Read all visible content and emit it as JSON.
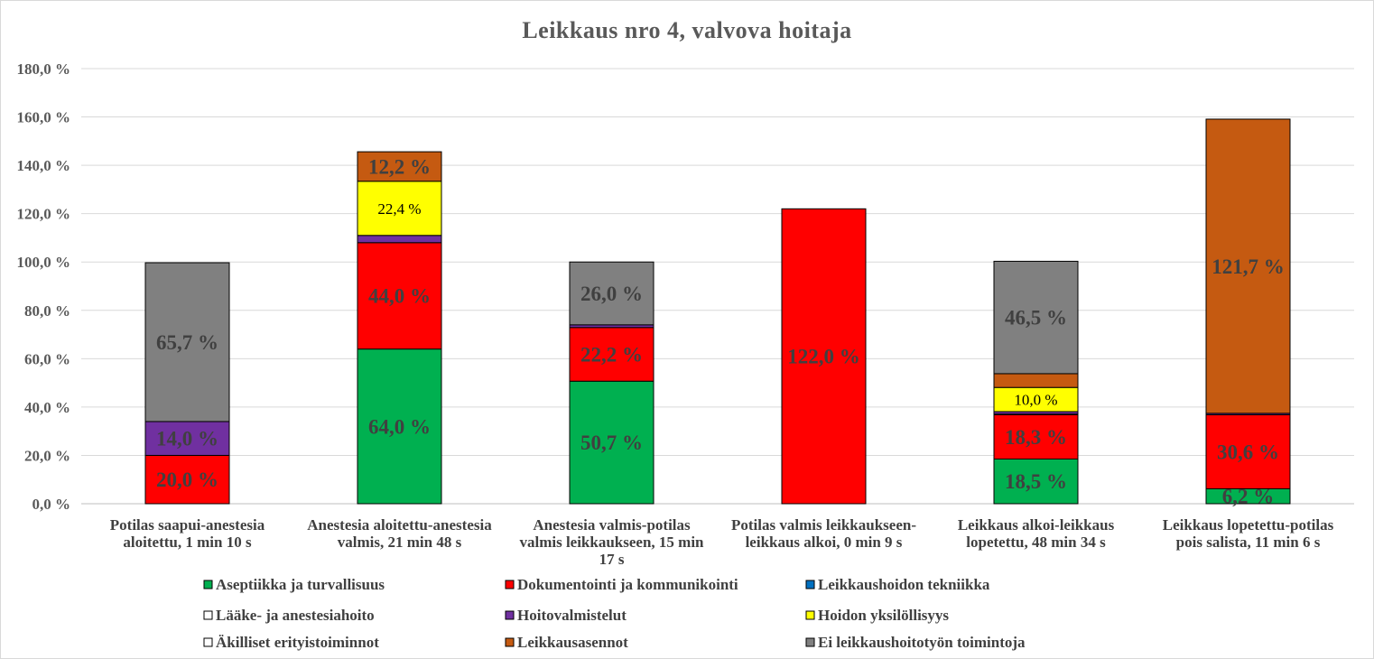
{
  "chart_data": {
    "type": "bar",
    "stacked": true,
    "title": "Leikkaus nro 4, valvova hoitaja",
    "xlabel": "",
    "ylabel": "",
    "ylim": [
      0,
      180
    ],
    "y_tick_step": 20,
    "y_tick_labels": [
      "0,0 %",
      "20,0 %",
      "40,0 %",
      "60,0 %",
      "80,0 %",
      "100,0 %",
      "120,0 %",
      "140,0 %",
      "160,0 %",
      "180,0 %"
    ],
    "grid": true,
    "legend_position": "bottom",
    "categories": [
      [
        "Potilas saapui-anestesia",
        "aloitettu, 1 min 10 s"
      ],
      [
        "Anestesia aloitettu-anestesia",
        "valmis, 21 min 48 s"
      ],
      [
        "Anestesia valmis-potilas",
        "valmis leikkaukseen, 15 min",
        "17 s"
      ],
      [
        "Potilas valmis leikkaukseen-",
        "leikkaus alkoi, 0 min 9 s"
      ],
      [
        "Leikkaus alkoi-leikkaus",
        "lopetettu, 48 min 34 s"
      ],
      [
        "Leikkaus lopetettu-potilas",
        "pois salista, 11 min 6 s"
      ]
    ],
    "series": [
      {
        "name": "Aseptiikka ja turvallisuus",
        "color": "#00b050",
        "values": [
          0,
          64.0,
          50.7,
          0,
          18.5,
          6.2
        ],
        "labels": [
          null,
          "64,0 %",
          "50,7 %",
          null,
          "18,5 %",
          "6,2 %"
        ]
      },
      {
        "name": "Dokumentointi ja kommunikointi",
        "color": "#ff0000",
        "values": [
          20.0,
          44.0,
          22.2,
          122.0,
          18.3,
          30.6
        ],
        "labels": [
          "20,0 %",
          "44,0 %",
          "22,2 %",
          "122,0 %",
          "18,3 %",
          "30,6 %"
        ]
      },
      {
        "name": "Leikkaushoidon tekniikka",
        "color": "#0070c0",
        "values": [
          0,
          0,
          0,
          0,
          0.3,
          0
        ],
        "labels": [
          null,
          null,
          null,
          null,
          null,
          null
        ]
      },
      {
        "name": "Lääke- ja anestesiahoito",
        "color": "#ffffff",
        "values": [
          0,
          0,
          0,
          0,
          0,
          0
        ],
        "labels": [
          null,
          null,
          null,
          null,
          null,
          null
        ]
      },
      {
        "name": "Hoitovalmistelut",
        "color": "#7030a0",
        "values": [
          14.0,
          3.0,
          1.1,
          0,
          1.0,
          0.6
        ],
        "labels": [
          "14,0 %",
          null,
          null,
          null,
          null,
          null
        ]
      },
      {
        "name": "Hoidon yksilöllisyys",
        "color": "#ffff00",
        "values": [
          0,
          22.4,
          0,
          0,
          10.0,
          0
        ],
        "labels": [
          null,
          "22,4 %",
          null,
          null,
          "10,0 %",
          null
        ]
      },
      {
        "name": "Äkilliset erityistoiminnot",
        "color": "#ffffff",
        "values": [
          0,
          0,
          0,
          0,
          0,
          0
        ],
        "labels": [
          null,
          null,
          null,
          null,
          null,
          null
        ]
      },
      {
        "name": "Leikkausasennot",
        "color": "#c55a11",
        "values": [
          0,
          12.2,
          0,
          0,
          5.7,
          121.7
        ],
        "labels": [
          null,
          "12,2 %",
          null,
          null,
          null,
          "121,7 %"
        ]
      },
      {
        "name": "Ei leikkaushoitotyön toimintoja",
        "color": "#808080",
        "values": [
          65.7,
          0,
          26.0,
          0,
          46.5,
          0
        ],
        "labels": [
          "65,7 %",
          null,
          "26,0 %",
          null,
          "46,5 %",
          null
        ]
      }
    ],
    "small_label_series": [
      "Hoidon yksilöllisyys"
    ]
  }
}
